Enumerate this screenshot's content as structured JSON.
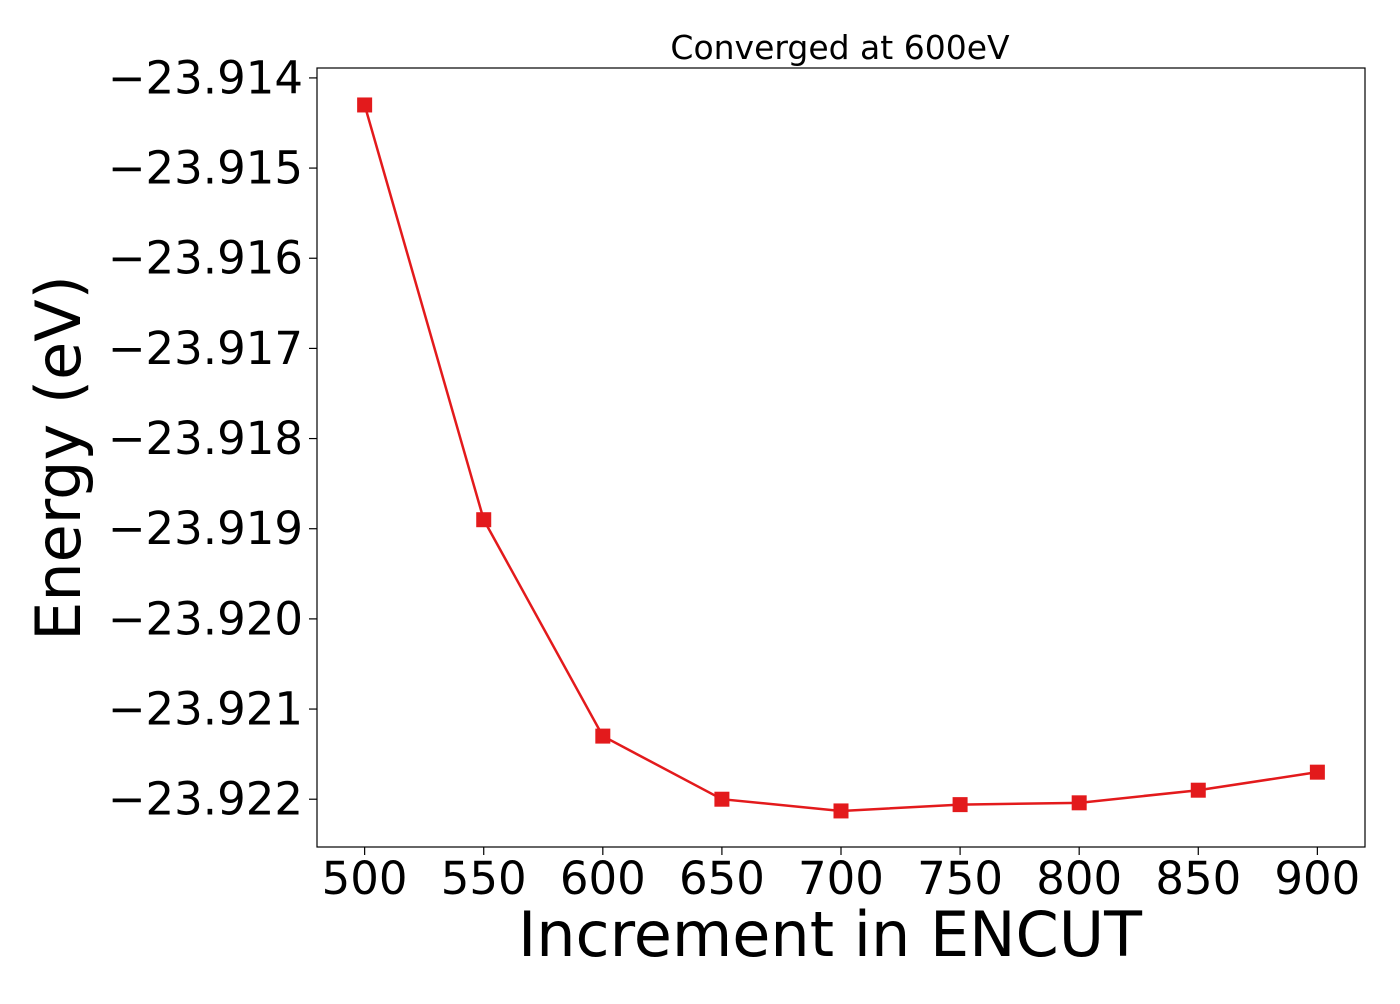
{
  "chart_data": {
    "type": "line",
    "title": "Converged at 600eV",
    "xlabel": "Increment in ENCUT",
    "ylabel": "Energy (eV)",
    "x": [
      500,
      550,
      600,
      650,
      700,
      750,
      800,
      850,
      900
    ],
    "series": [
      {
        "values": [
          -23.9143,
          -23.9189,
          -23.9213,
          -23.922,
          -23.92213,
          -23.92206,
          -23.92204,
          -23.9219,
          -23.9217
        ],
        "color": "#e31a1c",
        "marker": "square"
      }
    ],
    "xticks": [
      500,
      550,
      600,
      650,
      700,
      750,
      800,
      850,
      900
    ],
    "xtick_labels": [
      "500",
      "550",
      "600",
      "650",
      "700",
      "750",
      "800",
      "850",
      "900"
    ],
    "yticks": [
      -23.914,
      -23.915,
      -23.916,
      -23.917,
      -23.918,
      -23.919,
      -23.92,
      -23.921,
      -23.922
    ],
    "ytick_labels": [
      "−23.914",
      "−23.915",
      "−23.916",
      "−23.917",
      "−23.918",
      "−23.919",
      "−23.920",
      "−23.921",
      "−23.922"
    ],
    "xlim": [
      480,
      920
    ],
    "ylim": [
      -23.92253,
      -23.91389
    ],
    "grid": false,
    "legend": "none"
  }
}
